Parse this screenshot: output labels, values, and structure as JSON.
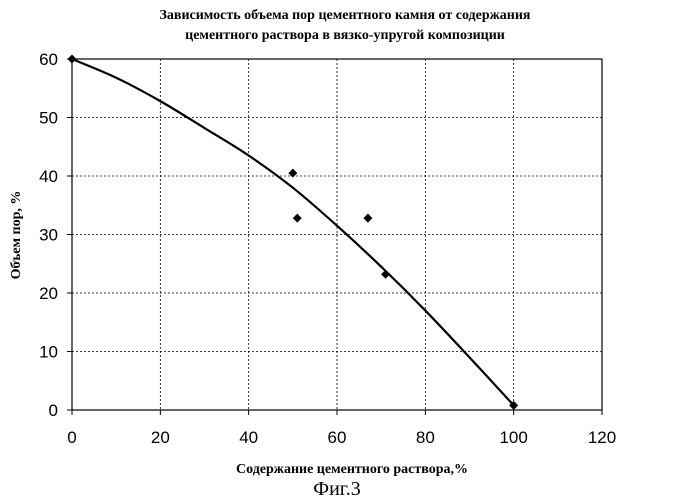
{
  "chart_data": {
    "type": "scatter",
    "title_lines": [
      "Зависимость  объема пор цементного  камня от содержания",
      "цементного раствора  в  вязко-упругой композиции"
    ],
    "xlabel": "Содержание  цементного  раствора,%",
    "ylabel": "Объем  пор, %",
    "xlim": [
      0,
      120
    ],
    "ylim": [
      0,
      60
    ],
    "x_ticks": [
      "0",
      "20",
      "40",
      "60",
      "80",
      "100",
      "120"
    ],
    "y_ticks": [
      "0",
      "10",
      "20",
      "30",
      "40",
      "50",
      "60"
    ],
    "grid": true,
    "points": [
      {
        "x": 0,
        "y": 60
      },
      {
        "x": 50,
        "y": 40.5
      },
      {
        "x": 51,
        "y": 32.8
      },
      {
        "x": 67,
        "y": 32.8
      },
      {
        "x": 71,
        "y": 23.2
      },
      {
        "x": 100,
        "y": 0.8
      }
    ],
    "trendline": {
      "x": [
        0,
        10,
        20,
        30,
        40,
        50,
        60,
        70,
        80,
        90,
        100
      ],
      "y": [
        60,
        56.8,
        52.8,
        48.2,
        43.5,
        38,
        31.5,
        24.5,
        17,
        9,
        0.8
      ]
    }
  },
  "caption": "Фиг.3"
}
